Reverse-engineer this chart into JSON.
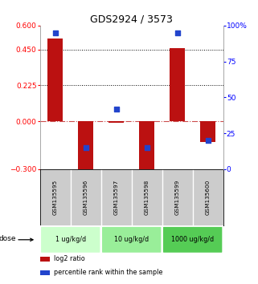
{
  "title": "GDS2924 / 3573",
  "samples": [
    "GSM135595",
    "GSM135596",
    "GSM135597",
    "GSM135598",
    "GSM135599",
    "GSM135600"
  ],
  "log2_ratio": [
    0.52,
    -0.32,
    -0.01,
    -0.32,
    0.46,
    -0.13
  ],
  "percentile_rank": [
    95,
    15,
    42,
    15,
    95,
    20
  ],
  "bar_color": "#bb1111",
  "dot_color": "#2244cc",
  "ylim_left": [
    -0.3,
    0.6
  ],
  "ylim_right": [
    0,
    100
  ],
  "yticks_left": [
    -0.3,
    0,
    0.225,
    0.45,
    0.6
  ],
  "yticks_right": [
    0,
    25,
    50,
    75,
    100
  ],
  "dotted_lines": [
    0.225,
    0.45
  ],
  "dose_groups": [
    {
      "label": "1 ug/kg/d",
      "cols": [
        0,
        1
      ],
      "color": "#ccffcc"
    },
    {
      "label": "10 ug/kg/d",
      "cols": [
        2,
        3
      ],
      "color": "#99ee99"
    },
    {
      "label": "1000 ug/kg/d",
      "cols": [
        4,
        5
      ],
      "color": "#55cc55"
    }
  ],
  "dose_label": "dose",
  "legend_items": [
    {
      "color": "#bb1111",
      "label": "log2 ratio"
    },
    {
      "color": "#2244cc",
      "label": "percentile rank within the sample"
    }
  ],
  "bg_color": "#ffffff",
  "bar_width": 0.5,
  "sample_bg": "#cccccc",
  "title_fontsize": 9
}
